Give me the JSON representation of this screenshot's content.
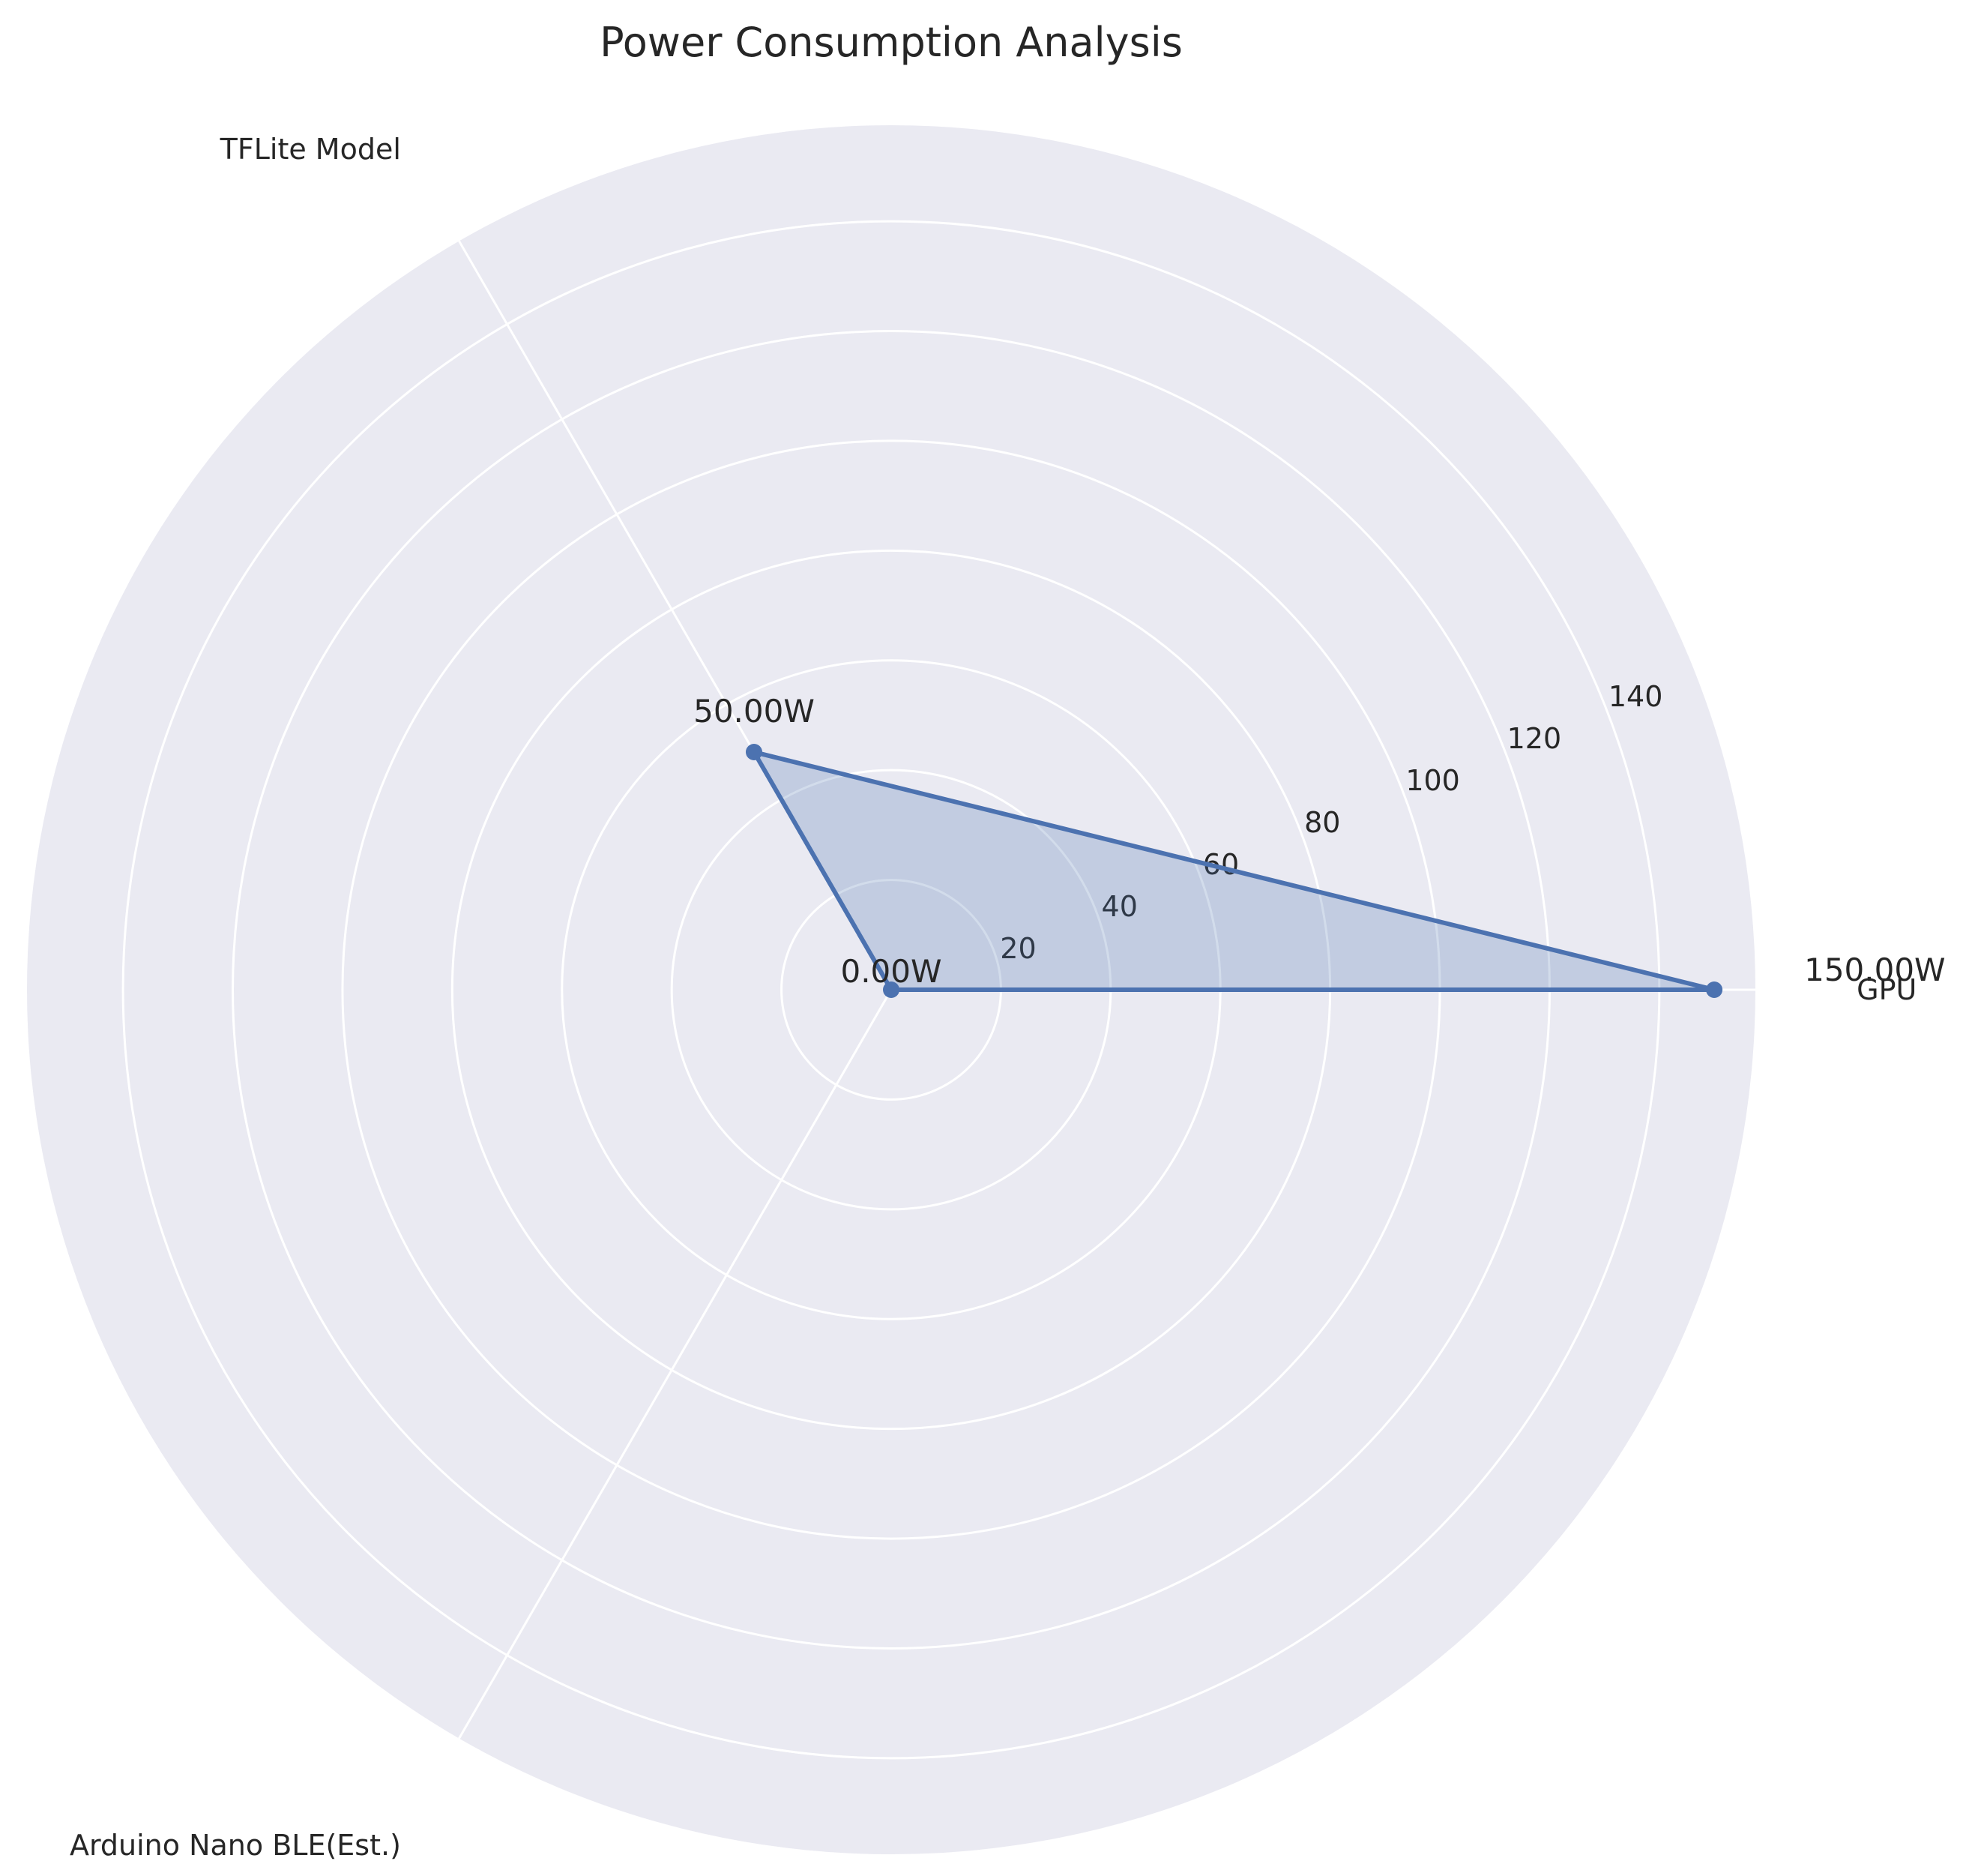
{
  "chart_data": {
    "type": "radar",
    "title": "Power Consumption Analysis",
    "categories": [
      "GPU",
      "TFLite Model",
      "Arduino Nano BLE(Est.)"
    ],
    "series": [
      {
        "values": [
          150,
          50,
          0
        ]
      }
    ],
    "value_labels": [
      "150.00W",
      "50.00W",
      "0.00W"
    ],
    "radial_ticks": [
      20,
      40,
      60,
      80,
      100,
      120,
      140
    ],
    "rlim": [
      0,
      157.5
    ],
    "grid": true,
    "legend": "none",
    "colors": {
      "background": "#eaeaf2",
      "grid": "#ffffff",
      "line": "#4c72b0",
      "fill": "#4c72b0",
      "text": "#262626"
    }
  }
}
